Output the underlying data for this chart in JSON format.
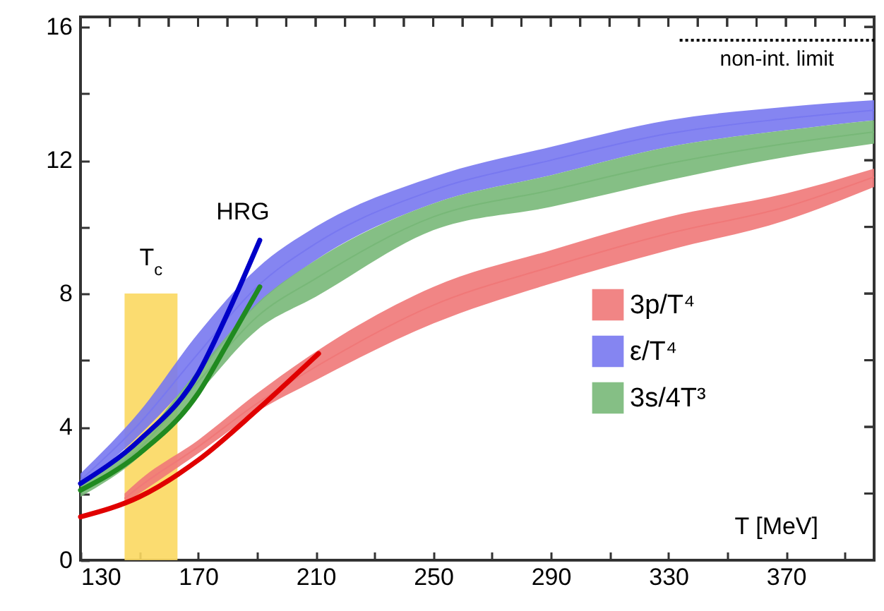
{
  "chart_data": {
    "type": "line",
    "xlabel": "T [MeV]",
    "xlim": [
      130,
      400
    ],
    "ylim": [
      0,
      16.3
    ],
    "xticks": [
      130,
      {
        "value": 140,
        "label": null
      },
      {
        "value": 150,
        "label": null
      },
      {
        "value": 160,
        "label": null
      },
      170,
      {
        "value": 180,
        "label": null
      },
      {
        "value": 190,
        "label": null
      },
      {
        "value": 200,
        "label": null
      },
      210,
      {
        "value": 220,
        "label": null
      },
      {
        "value": 230,
        "label": null
      },
      {
        "value": 240,
        "label": null
      },
      250,
      {
        "value": 260,
        "label": null
      },
      {
        "value": 270,
        "label": null
      },
      {
        "value": 280,
        "label": null
      },
      290,
      {
        "value": 300,
        "label": null
      },
      {
        "value": 310,
        "label": null
      },
      {
        "value": 320,
        "label": null
      },
      330,
      {
        "value": 340,
        "label": null
      },
      {
        "value": 350,
        "label": null
      },
      {
        "value": 360,
        "label": null
      },
      370,
      {
        "value": 380,
        "label": null
      },
      {
        "value": 390,
        "label": null
      }
    ],
    "yticks": [
      0,
      {
        "value": 2,
        "label": null
      },
      4,
      {
        "value": 6,
        "label": null
      },
      8,
      {
        "value": 10,
        "label": null
      },
      12,
      {
        "value": 14,
        "label": null
      },
      16
    ],
    "legend": "right",
    "series": [
      {
        "name": "3p/T⁴",
        "color": "#f07878",
        "x": [
          145,
          150,
          170,
          190,
          210,
          250,
          290,
          330,
          370,
          400
        ],
        "values": [
          1.85,
          2.2,
          3.4,
          4.7,
          5.8,
          7.65,
          8.8,
          9.8,
          10.6,
          11.5
        ],
        "lower": [
          1.7,
          2.0,
          3.2,
          4.45,
          5.4,
          7.1,
          8.3,
          9.3,
          10.2,
          11.2
        ],
        "upper": [
          2.0,
          2.4,
          3.6,
          5.0,
          6.25,
          8.2,
          9.3,
          10.3,
          11.0,
          11.75
        ]
      },
      {
        "name": "ε/T⁴",
        "color": "#7878f0",
        "x": [
          130,
          150,
          170,
          190,
          210,
          250,
          290,
          330,
          370,
          400
        ],
        "values": [
          2.4,
          4.1,
          6.2,
          8.2,
          9.5,
          11.1,
          12.0,
          12.8,
          13.25,
          13.5
        ],
        "lower": [
          2.2,
          3.75,
          5.6,
          7.65,
          9.0,
          10.7,
          11.55,
          12.4,
          12.9,
          13.2
        ],
        "upper": [
          2.6,
          4.45,
          6.8,
          8.75,
          10.0,
          11.5,
          12.4,
          13.2,
          13.6,
          13.8
        ]
      },
      {
        "name": "3s/4T³",
        "color": "#78b878",
        "x": [
          130,
          150,
          170,
          190,
          210,
          250,
          290,
          330,
          370,
          400
        ],
        "values": [
          2.1,
          3.35,
          5.35,
          7.3,
          8.45,
          10.3,
          11.1,
          11.9,
          12.5,
          12.85
        ],
        "lower": [
          1.9,
          3.1,
          5.0,
          6.9,
          7.9,
          9.9,
          10.6,
          11.4,
          12.1,
          12.5
        ],
        "upper": [
          2.3,
          3.6,
          5.7,
          7.7,
          9.0,
          10.7,
          11.55,
          12.4,
          12.9,
          13.2
        ]
      },
      {
        "color": "#e00000",
        "x": [
          130,
          150,
          170,
          190,
          211
        ],
        "values": [
          1.3,
          1.9,
          3.0,
          4.5,
          6.2
        ]
      },
      {
        "color": "#0000c8",
        "x": [
          130,
          150,
          170,
          180,
          191
        ],
        "values": [
          2.3,
          3.6,
          5.6,
          7.4,
          9.6
        ]
      },
      {
        "color": "#208a20",
        "x": [
          130,
          150,
          170,
          180,
          191
        ],
        "values": [
          2.1,
          3.2,
          5.0,
          6.5,
          8.2
        ]
      }
    ],
    "bands": [
      {
        "axis": "x",
        "from": 145,
        "to": 163,
        "label": "T$_{c}$",
        "color": "#fbd860"
      }
    ],
    "ref_lines": [
      {
        "axis": "y",
        "value": 15.6,
        "label": "non-int. limit",
        "color": "#000000",
        "line_style": "dotted"
      }
    ],
    "annotations": [
      {
        "text": "HRG",
        "x": 191,
        "y": 9.6
      }
    ]
  }
}
